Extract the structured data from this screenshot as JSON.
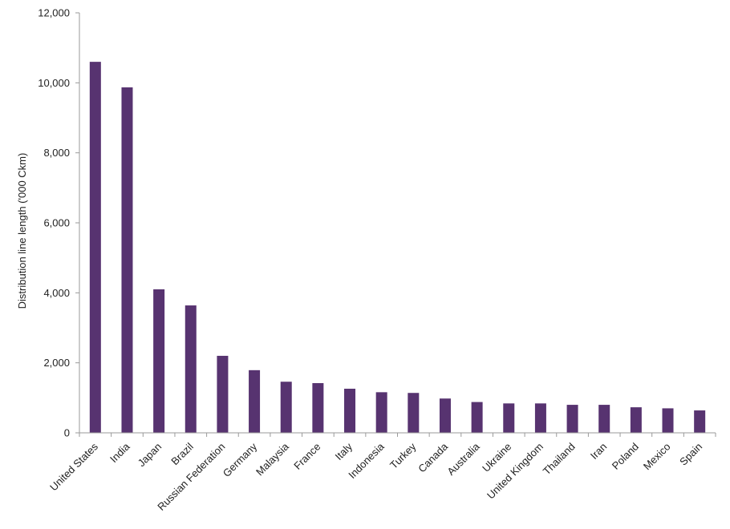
{
  "chart_data": {
    "type": "bar",
    "ylabel": "Distribution line length ('000 Ckm)",
    "xlabel": "",
    "ylim": [
      0,
      12000
    ],
    "yticks": [
      0,
      2000,
      4000,
      6000,
      8000,
      10000,
      12000
    ],
    "ytick_labels": [
      "0",
      "2,000",
      "4,000",
      "6,000",
      "8,000",
      "10,000",
      "12,000"
    ],
    "grid": false,
    "legend": "none",
    "bar_color": "#573370",
    "categories": [
      "United States",
      "India",
      "Japan",
      "Brazil",
      "Russian Federation",
      "Germany",
      "Malaysia",
      "France",
      "Italy",
      "Indonesia",
      "Turkey",
      "Canada",
      "Australia",
      "Ukraine",
      "United Kingdom",
      "Thailand",
      "Iran",
      "Poland",
      "Mexico",
      "Spain"
    ],
    "values": [
      10600,
      9870,
      4100,
      3640,
      2200,
      1790,
      1460,
      1420,
      1260,
      1160,
      1140,
      980,
      880,
      840,
      840,
      800,
      800,
      730,
      700,
      640
    ]
  }
}
